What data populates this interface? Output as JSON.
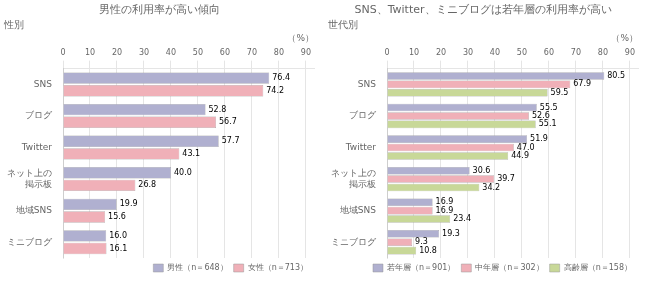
{
  "chart_data": [
    {
      "type": "bar",
      "orientation": "horizontal",
      "title": "男性の利用率が高い傾向",
      "subtitle": "性別",
      "xlabel": "（%）",
      "categories": [
        "SNS",
        "ブログ",
        "Twitter",
        "ネット上の\n掲示板",
        "地域SNS",
        "ミニブログ"
      ],
      "series": [
        {
          "name": "男性（n＝648）",
          "color": "#b0b0d0",
          "values": [
            76.4,
            52.8,
            57.7,
            40.0,
            19.9,
            16.0
          ],
          "value_labels": [
            "76.4",
            "52.8",
            "57.7",
            "40.0",
            "19.9",
            "16.0"
          ]
        },
        {
          "name": "女性（n＝713）",
          "color": "#f0b0b8",
          "values": [
            74.2,
            56.7,
            43.1,
            26.8,
            15.6,
            16.1
          ],
          "value_labels": [
            "74.2",
            "56.7",
            "43.1",
            "26.8",
            "15.6",
            "16.1"
          ]
        }
      ],
      "xlim": [
        0,
        93
      ],
      "xticks": [
        0,
        10,
        20,
        30,
        40,
        50,
        60,
        70,
        80,
        90
      ],
      "grid": true,
      "legend": "lower right",
      "data_labels": true
    },
    {
      "type": "bar",
      "orientation": "horizontal",
      "title": "SNS、Twitter、ミニブログは若年層の利用率が高い",
      "subtitle": "世代別",
      "xlabel": "（%）",
      "categories": [
        "SNS",
        "ブログ",
        "Twitter",
        "ネット上の\n掲示板",
        "地域SNS",
        "ミニブログ"
      ],
      "series": [
        {
          "name": "若年層（n＝901）",
          "color": "#b0b0d0",
          "values": [
            80.5,
            55.5,
            51.9,
            30.6,
            16.9,
            19.3
          ],
          "value_labels": [
            "80.5",
            "55.5",
            "51.9",
            "30.6",
            "16.9",
            "19.3"
          ]
        },
        {
          "name": "中年層（n＝302）",
          "color": "#f0b0b8",
          "values": [
            67.9,
            52.6,
            47.0,
            39.7,
            16.9,
            9.3
          ],
          "value_labels": [
            "67.9",
            "52.6",
            "47.0",
            "39.7",
            "16.9",
            "9.3"
          ]
        },
        {
          "name": "高齢層（n＝158）",
          "color": "#c8d898",
          "values": [
            59.5,
            55.1,
            44.9,
            34.2,
            23.4,
            10.8
          ],
          "value_labels": [
            "59.5",
            "55.1",
            "44.9",
            "34.2",
            "23.4",
            "10.8"
          ]
        }
      ],
      "xlim": [
        0,
        93
      ],
      "xticks": [
        0,
        10,
        20,
        30,
        40,
        50,
        60,
        70,
        80,
        90
      ],
      "grid": true,
      "legend": "lower right",
      "data_labels": true
    }
  ]
}
